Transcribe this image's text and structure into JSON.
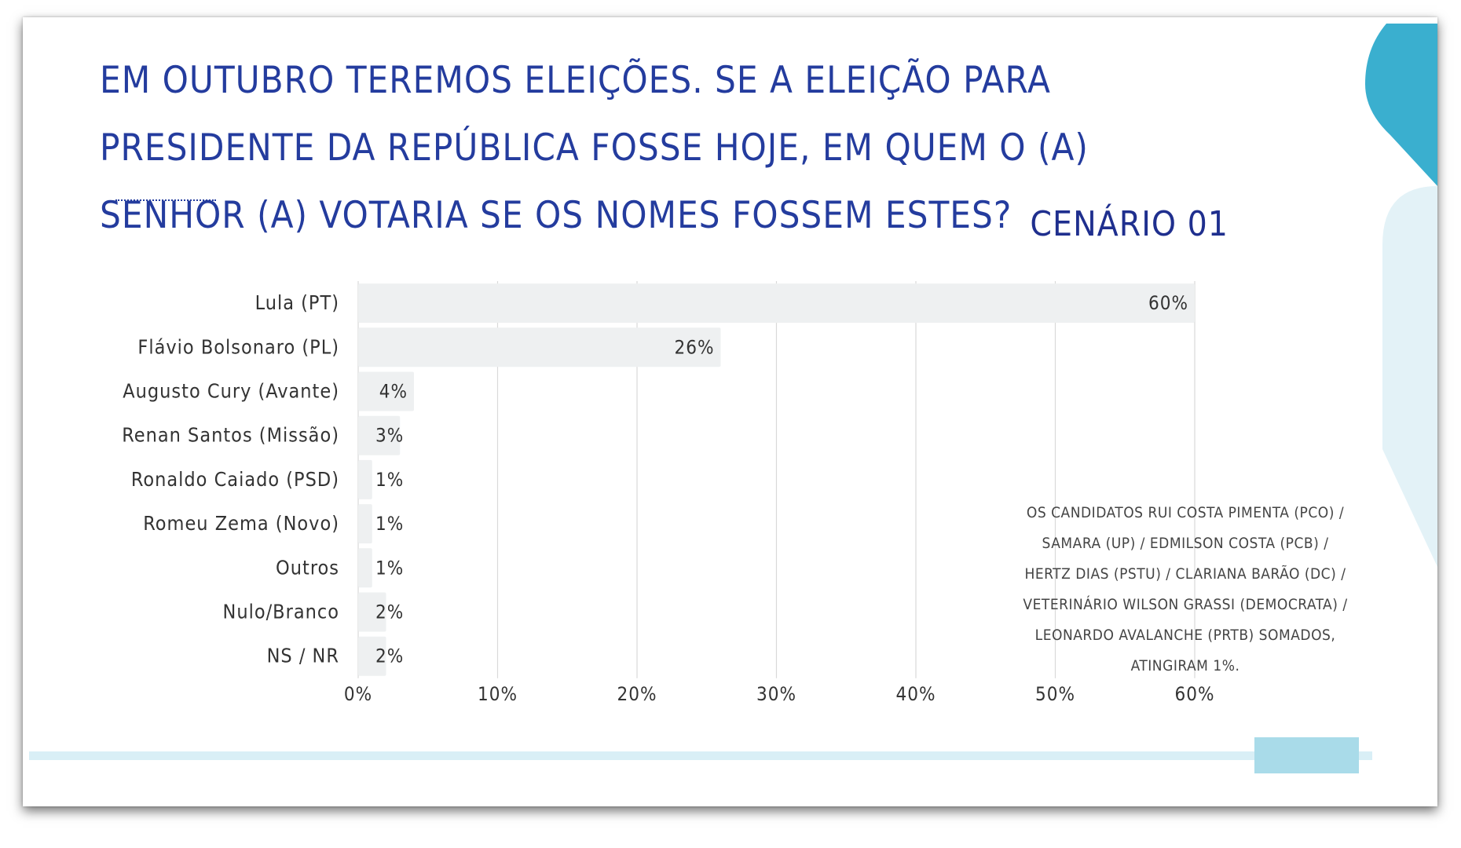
{
  "title": "Em outubro teremos eleições. Se a eleição para presidente da República fosse hoje, em quem o (a) senhor (a) votaria se os nomes fossem estes?",
  "scenario": "CENÁRIO 01",
  "note": "Os candidatos  Rui Costa Pimenta (PCO) / Samara (UP) / Edmilson Costa (PCB) / Hertz Dias (PSTU)  / Clariana Barão (DC) / Veterinário Wilson Grassi (Democrata) / Leonardo Avalanche (PRTB) somados, atingiram 1%.",
  "colors": {
    "title": "#243c9e",
    "bar": "#eef0f1",
    "grid": "#d9d9d9",
    "accent": "#3bb0cf",
    "accent_light": "#d8eef4"
  },
  "chart_data": {
    "type": "bar",
    "orientation": "horizontal",
    "categories": [
      "Lula (PT)",
      "Flávio Bolsonaro (PL)",
      "Augusto Cury (Avante)",
      "Renan Santos (Missão)",
      "Ronaldo Caiado (PSD)",
      "Romeu Zema (Novo)",
      "Outros",
      "Nulo/Branco",
      "NS / NR"
    ],
    "values": [
      60,
      26,
      4,
      3,
      1,
      1,
      1,
      2,
      2
    ],
    "data_labels": [
      "60%",
      "26%",
      "4%",
      "3%",
      "1%",
      "1%",
      "1%",
      "2%",
      "2%"
    ],
    "xlim": [
      0,
      60
    ],
    "xticks": [
      0,
      10,
      20,
      30,
      40,
      50,
      60
    ],
    "xtick_labels": [
      "0%",
      "10%",
      "20%",
      "30%",
      "40%",
      "50%",
      "60%"
    ],
    "grid": true,
    "legend": "none"
  }
}
